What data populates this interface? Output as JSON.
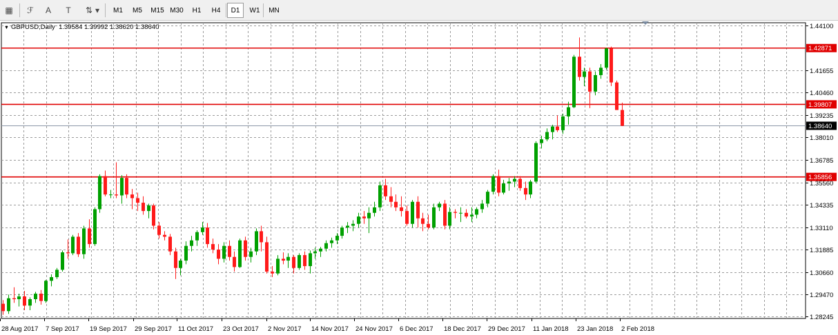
{
  "toolbar": {
    "tools": [
      {
        "name": "objects-list-icon",
        "glyph": "▦"
      },
      {
        "name": "fibonacci-icon",
        "glyph": "ℱ"
      },
      {
        "name": "text-tool-icon",
        "glyph": "A"
      },
      {
        "name": "text-label-icon",
        "glyph": "T"
      },
      {
        "name": "arrows-tool-icon",
        "glyph": "⇅"
      },
      {
        "name": "dropdown-icon",
        "glyph": "▾"
      }
    ],
    "timeframes": [
      "M1",
      "M5",
      "M15",
      "M30",
      "H1",
      "H4",
      "D1",
      "W1",
      "MN"
    ],
    "active_timeframe": "D1"
  },
  "symbol": {
    "label": "GBPUSD,Daily",
    "ohlc": "1.39584 1.39992 1.38620 1.38640"
  },
  "colors": {
    "bull": "#00a000",
    "bear": "#ff1a1a",
    "grid": "#9a9a9a",
    "level_line": "#e00000",
    "price_line": "#8c98a8",
    "price_tag_bg": "#000000"
  },
  "chart_data": {
    "type": "candlestick",
    "ylim": [
      1.2815,
      1.4425
    ],
    "y_ticks": [
      "1.44100",
      "1.41655",
      "1.40460",
      "1.39235",
      "1.38010",
      "1.36785",
      "1.35560",
      "1.34335",
      "1.33110",
      "1.31885",
      "1.30660",
      "1.29470",
      "1.28245"
    ],
    "x_labels": [
      "28 Aug 2017",
      "7 Sep 2017",
      "19 Sep 2017",
      "29 Sep 2017",
      "11 Oct 2017",
      "23 Oct 2017",
      "2 Nov 2017",
      "14 Nov 2017",
      "24 Nov 2017",
      "6 Dec 2017",
      "18 Dec 2017",
      "29 Dec 2017",
      "11 Jan 2018",
      "23 Jan 2018",
      "2 Feb 2018"
    ],
    "levels": [
      {
        "label": "1.42871",
        "value": 1.42871
      },
      {
        "label": "1.39807",
        "value": 1.39807
      },
      {
        "label": "1.35856",
        "value": 1.35856
      }
    ],
    "current_price": {
      "label": "1.38640",
      "value": 1.3864
    },
    "candles": [
      [
        1.2895,
        1.2915,
        1.2835,
        1.2855
      ],
      [
        1.2855,
        1.2945,
        1.284,
        1.2925
      ],
      [
        1.2925,
        1.2985,
        1.29,
        1.292
      ],
      [
        1.292,
        1.295,
        1.288,
        1.2935
      ],
      [
        1.2935,
        1.2965,
        1.286,
        1.2885
      ],
      [
        1.2885,
        1.293,
        1.286,
        1.292
      ],
      [
        1.292,
        1.296,
        1.29,
        1.295
      ],
      [
        1.295,
        1.297,
        1.289,
        1.291
      ],
      [
        1.291,
        1.3025,
        1.29,
        1.302
      ],
      [
        1.302,
        1.3055,
        1.299,
        1.304
      ],
      [
        1.304,
        1.309,
        1.303,
        1.308
      ],
      [
        1.308,
        1.3185,
        1.307,
        1.3175
      ],
      [
        1.3175,
        1.3245,
        1.314,
        1.317
      ],
      [
        1.317,
        1.327,
        1.316,
        1.326
      ],
      [
        1.326,
        1.328,
        1.315,
        1.3165
      ],
      [
        1.3165,
        1.332,
        1.314,
        1.3305
      ],
      [
        1.3305,
        1.3355,
        1.32,
        1.322
      ],
      [
        1.322,
        1.342,
        1.321,
        1.341
      ],
      [
        1.341,
        1.36,
        1.339,
        1.359
      ],
      [
        1.359,
        1.362,
        1.348,
        1.349
      ],
      [
        1.349,
        1.3515,
        1.347,
        1.349
      ],
      [
        1.349,
        1.3665,
        1.347,
        1.3485
      ],
      [
        1.3485,
        1.3595,
        1.344,
        1.358
      ],
      [
        1.358,
        1.36,
        1.347,
        1.349
      ],
      [
        1.349,
        1.352,
        1.341,
        1.347
      ],
      [
        1.347,
        1.35,
        1.34,
        1.3445
      ],
      [
        1.3445,
        1.348,
        1.338,
        1.34
      ],
      [
        1.34,
        1.344,
        1.336,
        1.343
      ],
      [
        1.343,
        1.344,
        1.33,
        1.332
      ],
      [
        1.332,
        1.334,
        1.325,
        1.327
      ],
      [
        1.327,
        1.329,
        1.324,
        1.326
      ],
      [
        1.326,
        1.3275,
        1.316,
        1.318
      ],
      [
        1.318,
        1.32,
        1.303,
        1.309
      ],
      [
        1.309,
        1.314,
        1.305,
        1.313
      ],
      [
        1.313,
        1.3235,
        1.311,
        1.321
      ],
      [
        1.321,
        1.3265,
        1.318,
        1.324
      ],
      [
        1.324,
        1.3295,
        1.321,
        1.3285
      ],
      [
        1.3285,
        1.334,
        1.327,
        1.331
      ],
      [
        1.331,
        1.3335,
        1.32,
        1.322
      ],
      [
        1.322,
        1.325,
        1.317,
        1.319
      ],
      [
        1.319,
        1.322,
        1.311,
        1.314
      ],
      [
        1.314,
        1.323,
        1.312,
        1.321
      ],
      [
        1.321,
        1.324,
        1.313,
        1.315
      ],
      [
        1.315,
        1.318,
        1.307,
        1.3095
      ],
      [
        1.3095,
        1.325,
        1.309,
        1.324
      ],
      [
        1.324,
        1.326,
        1.313,
        1.315
      ],
      [
        1.315,
        1.32,
        1.312,
        1.318
      ],
      [
        1.318,
        1.3305,
        1.316,
        1.329
      ],
      [
        1.329,
        1.332,
        1.318,
        1.323
      ],
      [
        1.323,
        1.326,
        1.306,
        1.307
      ],
      [
        1.307,
        1.31,
        1.304,
        1.306
      ],
      [
        1.306,
        1.316,
        1.305,
        1.314
      ],
      [
        1.314,
        1.3175,
        1.311,
        1.313
      ],
      [
        1.313,
        1.317,
        1.309,
        1.315
      ],
      [
        1.315,
        1.316,
        1.306,
        1.309
      ],
      [
        1.309,
        1.317,
        1.308,
        1.316
      ],
      [
        1.316,
        1.318,
        1.308,
        1.31
      ],
      [
        1.31,
        1.3185,
        1.306,
        1.317
      ],
      [
        1.317,
        1.32,
        1.314,
        1.318
      ],
      [
        1.318,
        1.3205,
        1.315,
        1.3195
      ],
      [
        1.3195,
        1.324,
        1.318,
        1.3225
      ],
      [
        1.3225,
        1.3255,
        1.32,
        1.324
      ],
      [
        1.324,
        1.328,
        1.322,
        1.3265
      ],
      [
        1.3265,
        1.332,
        1.325,
        1.331
      ],
      [
        1.331,
        1.334,
        1.328,
        1.332
      ],
      [
        1.332,
        1.335,
        1.329,
        1.333
      ],
      [
        1.333,
        1.339,
        1.331,
        1.337
      ],
      [
        1.337,
        1.34,
        1.333,
        1.336
      ],
      [
        1.336,
        1.342,
        1.328,
        1.339
      ],
      [
        1.339,
        1.345,
        1.337,
        1.342
      ],
      [
        1.342,
        1.356,
        1.34,
        1.354
      ],
      [
        1.354,
        1.3575,
        1.346,
        1.348
      ],
      [
        1.348,
        1.353,
        1.342,
        1.345
      ],
      [
        1.345,
        1.349,
        1.34,
        1.342
      ],
      [
        1.342,
        1.348,
        1.337,
        1.34
      ],
      [
        1.34,
        1.343,
        1.332,
        1.333
      ],
      [
        1.333,
        1.346,
        1.331,
        1.345
      ],
      [
        1.345,
        1.348,
        1.331,
        1.336
      ],
      [
        1.336,
        1.339,
        1.329,
        1.333
      ],
      [
        1.333,
        1.338,
        1.33,
        1.331
      ],
      [
        1.331,
        1.344,
        1.33,
        1.342
      ],
      [
        1.342,
        1.345,
        1.34,
        1.344
      ],
      [
        1.344,
        1.346,
        1.33,
        1.332
      ],
      [
        1.332,
        1.342,
        1.33,
        1.3395
      ],
      [
        1.3395,
        1.341,
        1.336,
        1.339
      ],
      [
        1.339,
        1.342,
        1.334,
        1.339
      ],
      [
        1.339,
        1.341,
        1.336,
        1.337
      ],
      [
        1.337,
        1.342,
        1.334,
        1.338
      ],
      [
        1.338,
        1.342,
        1.336,
        1.341
      ],
      [
        1.341,
        1.346,
        1.339,
        1.344
      ],
      [
        1.344,
        1.3515,
        1.342,
        1.3505
      ],
      [
        1.3505,
        1.36,
        1.349,
        1.359
      ],
      [
        1.359,
        1.3625,
        1.348,
        1.35
      ],
      [
        1.35,
        1.357,
        1.349,
        1.355
      ],
      [
        1.355,
        1.358,
        1.351,
        1.356
      ],
      [
        1.356,
        1.359,
        1.353,
        1.3575
      ],
      [
        1.3575,
        1.359,
        1.351,
        1.3525
      ],
      [
        1.3525,
        1.356,
        1.346,
        1.349
      ],
      [
        1.349,
        1.357,
        1.347,
        1.356
      ],
      [
        1.356,
        1.378,
        1.355,
        1.377
      ],
      [
        1.377,
        1.381,
        1.374,
        1.379
      ],
      [
        1.379,
        1.385,
        1.378,
        1.383
      ],
      [
        1.383,
        1.387,
        1.379,
        1.386
      ],
      [
        1.386,
        1.392,
        1.383,
        1.384
      ],
      [
        1.384,
        1.393,
        1.382,
        1.3915
      ],
      [
        1.3915,
        1.3995,
        1.387,
        1.3965
      ],
      [
        1.3965,
        1.425,
        1.396,
        1.424
      ],
      [
        1.424,
        1.4345,
        1.411,
        1.413
      ],
      [
        1.413,
        1.418,
        1.408,
        1.416
      ],
      [
        1.416,
        1.418,
        1.396,
        1.405
      ],
      [
        1.405,
        1.416,
        1.403,
        1.414
      ],
      [
        1.414,
        1.42,
        1.412,
        1.418
      ],
      [
        1.418,
        1.429,
        1.417,
        1.4285
      ],
      [
        1.4285,
        1.4295,
        1.408,
        1.41
      ],
      [
        1.41,
        1.411,
        1.395,
        1.395
      ],
      [
        1.395,
        1.399,
        1.3862,
        1.3864
      ]
    ]
  }
}
